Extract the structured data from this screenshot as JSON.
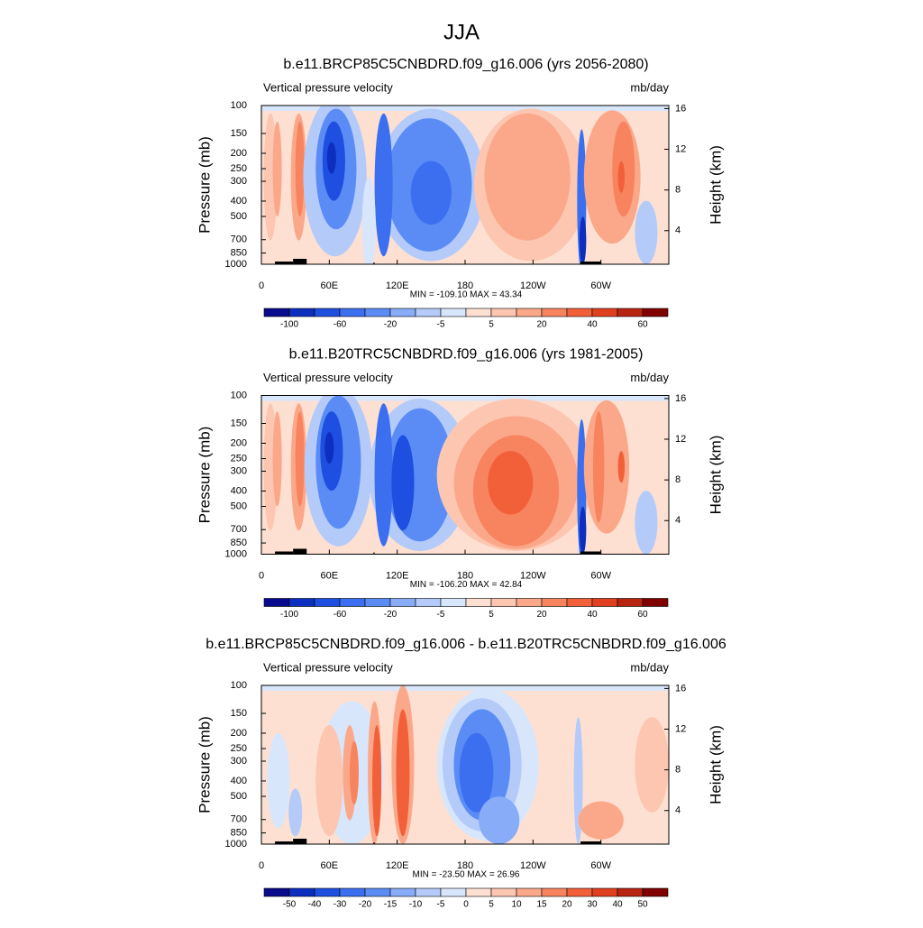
{
  "title": "JJA",
  "chart_data": [
    {
      "type": "contour",
      "title": "b.e11.BRCP85C5CNBDRD.f09_g16.006 (yrs 2056-2080)",
      "left_label": "Vertical pressure velocity",
      "right_label": "mb/day",
      "ylabel": "Pressure (mb)",
      "y2label": "Height (km)",
      "log_y": true,
      "ylim": [
        1000,
        100
      ],
      "yticks": [
        100,
        150,
        200,
        250,
        300,
        400,
        500,
        700,
        850,
        1000
      ],
      "y2lim": [
        0.7,
        16.3
      ],
      "y2ticks": [
        4,
        8,
        12,
        16
      ],
      "xlim": [
        0,
        360
      ],
      "xticks": [
        0,
        {
          "value": 60,
          "label": "60E"
        },
        {
          "value": 120,
          "label": "120E"
        },
        180,
        {
          "value": 240,
          "label": "120W"
        },
        {
          "value": 300,
          "label": "60W"
        }
      ],
      "stats": "MIN = -109.10  MAX =  43.34",
      "colorbar": {
        "colors": [
          "#0a0a8c",
          "#0c2fc0",
          "#1e4fe0",
          "#3b6ff0",
          "#5b8cf5",
          "#88acf7",
          "#b4cbfa",
          "#d8e6fc",
          "#fde0d2",
          "#fcc6b0",
          "#fba88a",
          "#f8845f",
          "#f2603a",
          "#e0401f",
          "#b82410",
          "#800000"
        ],
        "labels": [
          -100,
          -60,
          -20,
          -5,
          5,
          20,
          40,
          60
        ]
      }
    },
    {
      "type": "contour",
      "title": "b.e11.B20TRC5CNBDRD.f09_g16.006 (yrs 1981-2005)",
      "left_label": "Vertical pressure velocity",
      "right_label": "mb/day",
      "ylabel": "Pressure (mb)",
      "y2label": "Height (km)",
      "log_y": true,
      "ylim": [
        1000,
        100
      ],
      "yticks": [
        100,
        150,
        200,
        250,
        300,
        400,
        500,
        700,
        850,
        1000
      ],
      "y2lim": [
        0.7,
        16.3
      ],
      "y2ticks": [
        4,
        8,
        12,
        16
      ],
      "xlim": [
        0,
        360
      ],
      "xticks": [
        0,
        {
          "value": 60,
          "label": "60E"
        },
        {
          "value": 120,
          "label": "120E"
        },
        180,
        {
          "value": 240,
          "label": "120W"
        },
        {
          "value": 300,
          "label": "60W"
        }
      ],
      "stats": "MIN = -106.20  MAX =  42.84",
      "colorbar": {
        "colors": [
          "#0a0a8c",
          "#0c2fc0",
          "#1e4fe0",
          "#3b6ff0",
          "#5b8cf5",
          "#88acf7",
          "#b4cbfa",
          "#d8e6fc",
          "#fde0d2",
          "#fcc6b0",
          "#fba88a",
          "#f8845f",
          "#f2603a",
          "#e0401f",
          "#b82410",
          "#800000"
        ],
        "labels": [
          -100,
          -60,
          -20,
          -5,
          5,
          20,
          40,
          60
        ]
      }
    },
    {
      "type": "contour",
      "title": "b.e11.BRCP85C5CNBDRD.f09_g16.006 - b.e11.B20TRC5CNBDRD.f09_g16.006",
      "left_label": "Vertical pressure velocity",
      "right_label": "mb/day",
      "ylabel": "Pressure (mb)",
      "y2label": "Height (km)",
      "log_y": true,
      "ylim": [
        1000,
        100
      ],
      "yticks": [
        100,
        150,
        200,
        250,
        300,
        400,
        500,
        700,
        850,
        1000
      ],
      "y2lim": [
        0.7,
        16.3
      ],
      "y2ticks": [
        4,
        8,
        12,
        16
      ],
      "xlim": [
        0,
        360
      ],
      "xticks": [
        0,
        {
          "value": 60,
          "label": "60E"
        },
        {
          "value": 120,
          "label": "120E"
        },
        180,
        {
          "value": 240,
          "label": "120W"
        },
        {
          "value": 300,
          "label": "60W"
        }
      ],
      "stats": "MIN = -23.50  MAX =  26.96",
      "colorbar": {
        "colors": [
          "#0a0a8c",
          "#0c2fc0",
          "#1e4fe0",
          "#3b6ff0",
          "#5b8cf5",
          "#88acf7",
          "#b4cbfa",
          "#d8e6fc",
          "#fde0d2",
          "#fcc6b0",
          "#fba88a",
          "#f8845f",
          "#f2603a",
          "#e0401f",
          "#b82410",
          "#800000"
        ],
        "labels": [
          -50,
          -40,
          -30,
          -20,
          -15,
          -10,
          -5,
          0,
          5,
          10,
          15,
          20,
          30,
          40,
          50
        ]
      }
    }
  ]
}
